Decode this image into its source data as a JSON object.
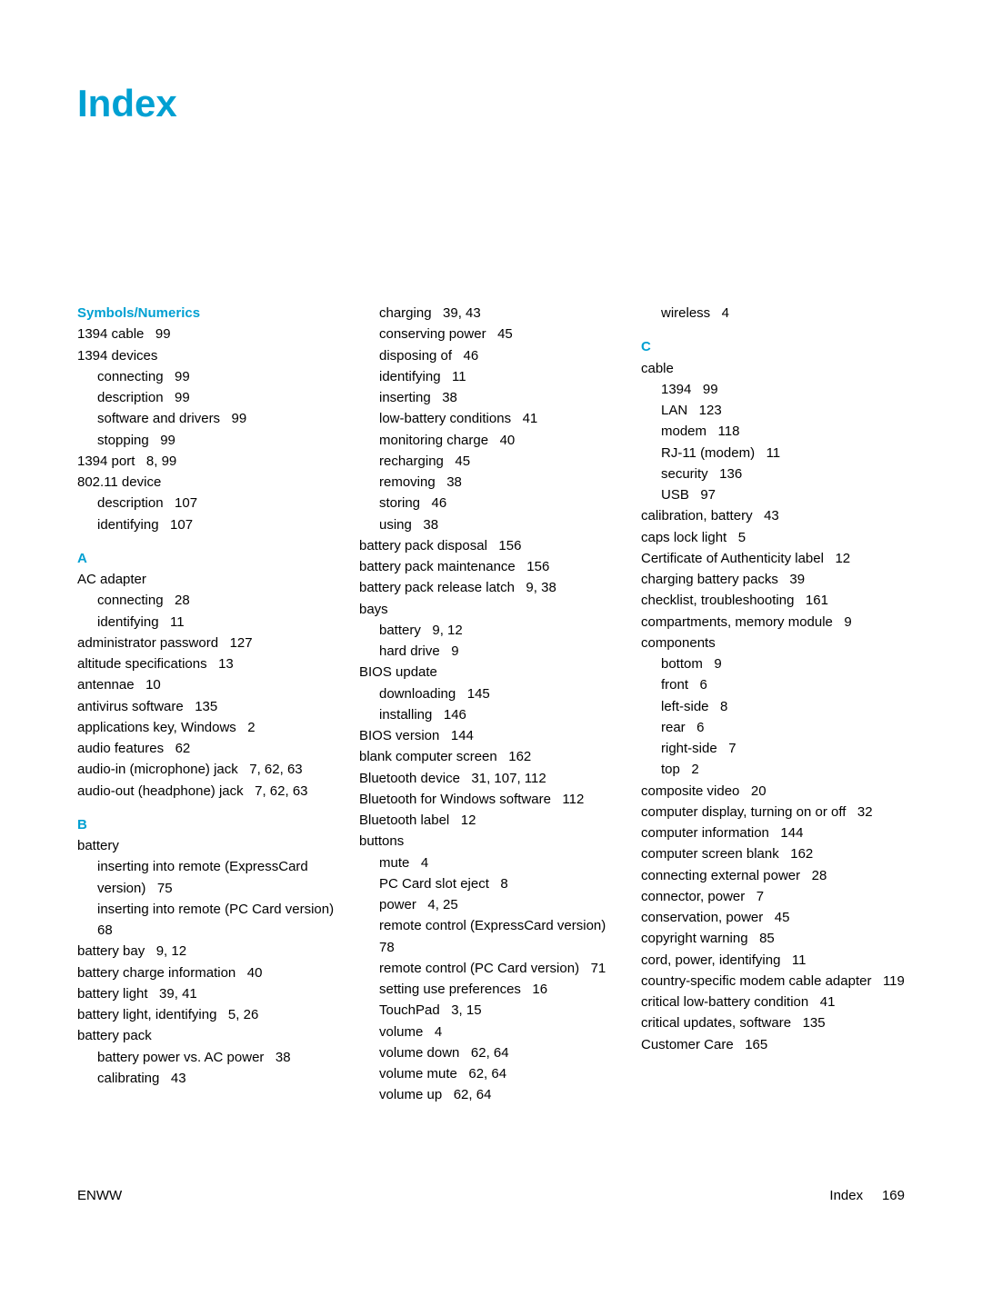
{
  "title": "Index",
  "footer_left": "ENWW",
  "footer_right_label": "Index",
  "footer_right_page": "169",
  "columns": [
    {
      "blocks": [
        {
          "type": "head",
          "text": "Symbols/Numerics",
          "first": true
        },
        {
          "type": "entry",
          "level": 0,
          "text": "1394 cable   99"
        },
        {
          "type": "entry",
          "level": 0,
          "text": "1394 devices"
        },
        {
          "type": "entry",
          "level": 1,
          "text": "connecting   99"
        },
        {
          "type": "entry",
          "level": 1,
          "text": "description   99"
        },
        {
          "type": "entry",
          "level": 1,
          "text": "software and drivers   99"
        },
        {
          "type": "entry",
          "level": 1,
          "text": "stopping   99"
        },
        {
          "type": "entry",
          "level": 0,
          "text": "1394 port   8, 99"
        },
        {
          "type": "entry",
          "level": 0,
          "text": "802.11 device"
        },
        {
          "type": "entry",
          "level": 1,
          "text": "description   107"
        },
        {
          "type": "entry",
          "level": 1,
          "text": "identifying   107"
        },
        {
          "type": "head",
          "text": "A"
        },
        {
          "type": "entry",
          "level": 0,
          "text": "AC adapter"
        },
        {
          "type": "entry",
          "level": 1,
          "text": "connecting   28"
        },
        {
          "type": "entry",
          "level": 1,
          "text": "identifying   11"
        },
        {
          "type": "entry",
          "level": 0,
          "text": "administrator password   127"
        },
        {
          "type": "entry",
          "level": 0,
          "text": "altitude specifications   13"
        },
        {
          "type": "entry",
          "level": 0,
          "text": "antennae   10"
        },
        {
          "type": "entry",
          "level": 0,
          "text": "antivirus software   135"
        },
        {
          "type": "entry",
          "level": 0,
          "text": "applications key, Windows   2"
        },
        {
          "type": "entry",
          "level": 0,
          "text": "audio features   62"
        },
        {
          "type": "entry",
          "level": 0,
          "text": "audio-in (microphone) jack   7, 62, 63"
        },
        {
          "type": "entry",
          "level": 0,
          "text": "audio-out (headphone) jack   7, 62, 63"
        },
        {
          "type": "head",
          "text": "B"
        },
        {
          "type": "entry",
          "level": 0,
          "text": "battery"
        },
        {
          "type": "entry",
          "level": 1,
          "text": "inserting into remote (ExpressCard version)   75"
        },
        {
          "type": "entry",
          "level": 1,
          "text": "inserting into remote (PC Card version)   68"
        },
        {
          "type": "entry",
          "level": 0,
          "text": "battery bay   9, 12"
        },
        {
          "type": "entry",
          "level": 0,
          "text": "battery charge information   40"
        },
        {
          "type": "entry",
          "level": 0,
          "text": "battery light   39, 41"
        },
        {
          "type": "entry",
          "level": 0,
          "text": "battery light, identifying   5, 26"
        },
        {
          "type": "entry",
          "level": 0,
          "text": "battery pack"
        },
        {
          "type": "entry",
          "level": 1,
          "text": "battery power vs. AC power   38"
        },
        {
          "type": "entry",
          "level": 1,
          "text": "calibrating   43"
        }
      ]
    },
    {
      "blocks": [
        {
          "type": "entry",
          "level": 1,
          "text": "charging   39, 43"
        },
        {
          "type": "entry",
          "level": 1,
          "text": "conserving power   45"
        },
        {
          "type": "entry",
          "level": 1,
          "text": "disposing of   46"
        },
        {
          "type": "entry",
          "level": 1,
          "text": "identifying   11"
        },
        {
          "type": "entry",
          "level": 1,
          "text": "inserting   38"
        },
        {
          "type": "entry",
          "level": 1,
          "text": "low-battery conditions   41"
        },
        {
          "type": "entry",
          "level": 1,
          "text": "monitoring charge   40"
        },
        {
          "type": "entry",
          "level": 1,
          "text": "recharging   45"
        },
        {
          "type": "entry",
          "level": 1,
          "text": "removing   38"
        },
        {
          "type": "entry",
          "level": 1,
          "text": "storing   46"
        },
        {
          "type": "entry",
          "level": 1,
          "text": "using   38"
        },
        {
          "type": "entry",
          "level": 0,
          "text": "battery pack disposal   156"
        },
        {
          "type": "entry",
          "level": 0,
          "text": "battery pack maintenance   156"
        },
        {
          "type": "entry",
          "level": 0,
          "text": "battery pack release latch   9, 38"
        },
        {
          "type": "entry",
          "level": 0,
          "text": "bays"
        },
        {
          "type": "entry",
          "level": 1,
          "text": "battery   9, 12"
        },
        {
          "type": "entry",
          "level": 1,
          "text": "hard drive   9"
        },
        {
          "type": "entry",
          "level": 0,
          "text": "BIOS update"
        },
        {
          "type": "entry",
          "level": 1,
          "text": "downloading   145"
        },
        {
          "type": "entry",
          "level": 1,
          "text": "installing   146"
        },
        {
          "type": "entry",
          "level": 0,
          "text": "BIOS version   144"
        },
        {
          "type": "entry",
          "level": 0,
          "text": "blank computer screen   162"
        },
        {
          "type": "entry",
          "level": 0,
          "text": "Bluetooth device   31, 107, 112"
        },
        {
          "type": "entry",
          "level": 0,
          "text": "Bluetooth for Windows software   112"
        },
        {
          "type": "entry",
          "level": 0,
          "text": "Bluetooth label   12"
        },
        {
          "type": "entry",
          "level": 0,
          "text": "buttons"
        },
        {
          "type": "entry",
          "level": 1,
          "text": "mute   4"
        },
        {
          "type": "entry",
          "level": 1,
          "text": "PC Card slot eject   8"
        },
        {
          "type": "entry",
          "level": 1,
          "text": "power   4, 25"
        },
        {
          "type": "entry",
          "level": 1,
          "text": "remote control (ExpressCard version)   78"
        },
        {
          "type": "entry",
          "level": 1,
          "text": "remote control (PC Card version)   71"
        },
        {
          "type": "entry",
          "level": 1,
          "text": "setting use preferences   16"
        },
        {
          "type": "entry",
          "level": 1,
          "text": "TouchPad   3, 15"
        },
        {
          "type": "entry",
          "level": 1,
          "text": "volume   4"
        },
        {
          "type": "entry",
          "level": 1,
          "text": "volume down   62, 64"
        },
        {
          "type": "entry",
          "level": 1,
          "text": "volume mute   62, 64"
        },
        {
          "type": "entry",
          "level": 1,
          "text": "volume up   62, 64"
        }
      ]
    },
    {
      "blocks": [
        {
          "type": "entry",
          "level": 1,
          "text": "wireless   4"
        },
        {
          "type": "head",
          "text": "C"
        },
        {
          "type": "entry",
          "level": 0,
          "text": "cable"
        },
        {
          "type": "entry",
          "level": 1,
          "text": "1394   99"
        },
        {
          "type": "entry",
          "level": 1,
          "text": "LAN   123"
        },
        {
          "type": "entry",
          "level": 1,
          "text": "modem   118"
        },
        {
          "type": "entry",
          "level": 1,
          "text": "RJ-11 (modem)   11"
        },
        {
          "type": "entry",
          "level": 1,
          "text": "security   136"
        },
        {
          "type": "entry",
          "level": 1,
          "text": "USB   97"
        },
        {
          "type": "entry",
          "level": 0,
          "text": "calibration, battery   43"
        },
        {
          "type": "entry",
          "level": 0,
          "text": "caps lock light   5"
        },
        {
          "type": "entry",
          "level": 0,
          "text": "Certificate of Authenticity label   12"
        },
        {
          "type": "entry",
          "level": 0,
          "text": "charging battery packs   39"
        },
        {
          "type": "entry",
          "level": 0,
          "text": "checklist, troubleshooting   161"
        },
        {
          "type": "entry",
          "level": 0,
          "text": "compartments, memory module   9"
        },
        {
          "type": "entry",
          "level": 0,
          "text": "components"
        },
        {
          "type": "entry",
          "level": 1,
          "text": "bottom   9"
        },
        {
          "type": "entry",
          "level": 1,
          "text": "front   6"
        },
        {
          "type": "entry",
          "level": 1,
          "text": "left-side   8"
        },
        {
          "type": "entry",
          "level": 1,
          "text": "rear   6"
        },
        {
          "type": "entry",
          "level": 1,
          "text": "right-side   7"
        },
        {
          "type": "entry",
          "level": 1,
          "text": "top   2"
        },
        {
          "type": "entry",
          "level": 0,
          "text": "composite video   20"
        },
        {
          "type": "entry",
          "level": 0,
          "text": "computer display, turning on or off   32"
        },
        {
          "type": "entry",
          "level": 0,
          "text": "computer information   144"
        },
        {
          "type": "entry",
          "level": 0,
          "text": "computer screen blank   162"
        },
        {
          "type": "entry",
          "level": 0,
          "text": "connecting external power   28"
        },
        {
          "type": "entry",
          "level": 0,
          "text": "connector, power   7"
        },
        {
          "type": "entry",
          "level": 0,
          "text": "conservation, power   45"
        },
        {
          "type": "entry",
          "level": 0,
          "text": "copyright warning   85"
        },
        {
          "type": "entry",
          "level": 0,
          "text": "cord, power, identifying   11"
        },
        {
          "type": "entry",
          "level": 0,
          "text": "country-specific modem cable adapter   119"
        },
        {
          "type": "entry",
          "level": 0,
          "text": "critical low-battery condition   41"
        },
        {
          "type": "entry",
          "level": 0,
          "text": "critical updates, software   135"
        },
        {
          "type": "entry",
          "level": 0,
          "text": "Customer Care   165"
        }
      ]
    }
  ]
}
